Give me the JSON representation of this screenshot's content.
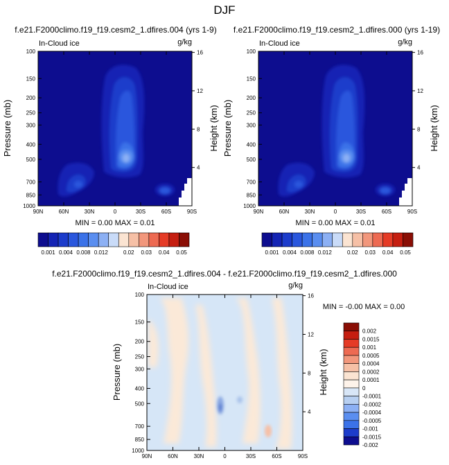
{
  "figure": {
    "title": "DJF",
    "season": "DJF"
  },
  "chart_data": [
    {
      "type": "heatmap",
      "id": "top-left",
      "title": "f.e21.F2000climo.f19_f19.cesm2_1.dfires.004 (yrs 1-9)",
      "left_label": "In-Cloud ice",
      "units": "g/kg",
      "xlabel": "",
      "ylabel": "Pressure (mb)",
      "ylabel_right": "Height (km)",
      "x_ticks": [
        "90N",
        "60N",
        "30N",
        "0",
        "30S",
        "60S",
        "90S"
      ],
      "y_ticks": [
        "100",
        "150",
        "200",
        "250",
        "300",
        "400",
        "500",
        "700",
        "850",
        "1000"
      ],
      "y_ticks_right": [
        "16",
        "12",
        "8",
        "4"
      ],
      "stats": "MIN =  0.00  MAX =  0.01",
      "colorbar_labels": [
        "0.001",
        "0.004",
        "0.008",
        "0.012",
        "0.02",
        "0.03",
        "0.04",
        "0.05"
      ]
    },
    {
      "type": "heatmap",
      "id": "top-right",
      "title": "f.e21.F2000climo.f19_f19.cesm2_1.dfires.000 (yrs 1-19)",
      "left_label": "In-Cloud ice",
      "units": "g/kg",
      "xlabel": "",
      "ylabel": "Pressure (mb)",
      "ylabel_right": "Height (km)",
      "x_ticks": [
        "90N",
        "60N",
        "30N",
        "0",
        "30S",
        "60S",
        "90S"
      ],
      "y_ticks": [
        "100",
        "150",
        "200",
        "250",
        "300",
        "400",
        "500",
        "700",
        "850",
        "1000"
      ],
      "y_ticks_right": [
        "16",
        "12",
        "8",
        "4"
      ],
      "stats": "MIN =  0.00  MAX =  0.01",
      "colorbar_labels": [
        "0.001",
        "0.004",
        "0.008",
        "0.012",
        "0.02",
        "0.03",
        "0.04",
        "0.05"
      ]
    },
    {
      "type": "heatmap",
      "id": "difference",
      "title": "f.e21.F2000climo.f19_f19.cesm2_1.dfires.004 - f.e21.F2000climo.f19_f19.cesm2_1.dfires.000",
      "left_label": "In-Cloud ice",
      "units": "g/kg",
      "xlabel": "",
      "ylabel": "Pressure (mb)",
      "ylabel_right": "Height (km)",
      "x_ticks": [
        "90N",
        "60N",
        "30N",
        "0",
        "30S",
        "60S",
        "90S"
      ],
      "y_ticks": [
        "100",
        "150",
        "200",
        "250",
        "300",
        "400",
        "500",
        "700",
        "850",
        "1000"
      ],
      "y_ticks_right": [
        "16",
        "12",
        "8",
        "4"
      ],
      "stats": "MIN = -0.00  MAX =  0.00",
      "colorbar_labels": [
        "0.002",
        "0.0015",
        "0.001",
        "0.0005",
        "0.0004",
        "0.0002",
        "0.0001",
        "0",
        "-0.0001",
        "-0.0002",
        "-0.0004",
        "-0.0005",
        "-0.001",
        "-0.0015",
        "-0.002"
      ]
    }
  ],
  "colors": {
    "seq_palette": [
      "#0d0d8f",
      "#1424b4",
      "#1c3ccb",
      "#2a57dd",
      "#3b72e8",
      "#5a8ef0",
      "#8cb0f4",
      "#c9dbf8",
      "#fbe4d2",
      "#f6c0a6",
      "#f2977c",
      "#ed6a52",
      "#e53b26",
      "#c51e10",
      "#8a0e05"
    ],
    "diff_palette": [
      "#8a0e05",
      "#c51e10",
      "#e53b26",
      "#ed6a52",
      "#f2977c",
      "#f6c0a6",
      "#fbe4d2",
      "#fef3ea",
      "#d8e6f7",
      "#b7cff1",
      "#8cb0f4",
      "#5a8ef0",
      "#3b72e8",
      "#1c3ccb",
      "#0d0d8f"
    ],
    "ocean_base": "#0d0d8f",
    "diff_base": "#d6e6f7"
  }
}
